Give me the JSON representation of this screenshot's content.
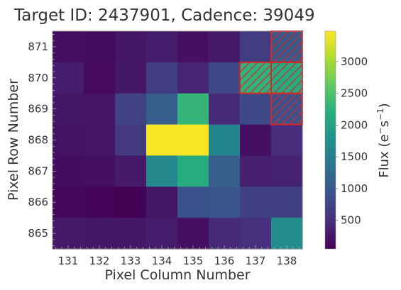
{
  "chart_data": {
    "type": "heatmap",
    "title": "Target ID: 2437901, Cadence: 39049",
    "xlabel": "Pixel Column Number",
    "ylabel": "Pixel Row Number",
    "x_ticks": [
      "131",
      "132",
      "133",
      "134",
      "135",
      "136",
      "137",
      "138"
    ],
    "y_ticks": [
      "865",
      "866",
      "867",
      "868",
      "869",
      "870",
      "871"
    ],
    "colorbar": {
      "label_main": "Flux (e",
      "label_sup_minus": "−",
      "label_mid": "s",
      "label_sup_exp": "−1",
      "label_end": ")",
      "ticks": [
        "500",
        "1000",
        "1500",
        "2000",
        "2500",
        "3000"
      ],
      "range": [
        50,
        3480
      ],
      "colormap": "viridis"
    },
    "rows": [
      871,
      870,
      869,
      868,
      867,
      866,
      865
    ],
    "columns": [
      131,
      132,
      133,
      134,
      135,
      136,
      137,
      138
    ],
    "values": [
      [
        180,
        150,
        250,
        320,
        200,
        280,
        650,
        1000
      ],
      [
        310,
        140,
        260,
        660,
        400,
        800,
        2250,
        2150
      ],
      [
        260,
        240,
        720,
        1050,
        2300,
        450,
        800,
        900
      ],
      [
        220,
        240,
        620,
        3450,
        3450,
        1600,
        200,
        480
      ],
      [
        170,
        200,
        280,
        1650,
        2150,
        1050,
        350,
        380
      ],
      [
        120,
        90,
        60,
        250,
        900,
        950,
        700,
        700
      ],
      [
        270,
        260,
        260,
        320,
        200,
        450,
        500,
        1700
      ]
    ],
    "aperture_mask": [
      {
        "row": 871,
        "col": 138
      },
      {
        "row": 870,
        "col": 137
      },
      {
        "row": 870,
        "col": 138
      },
      {
        "row": 869,
        "col": 138
      }
    ],
    "aperture_color": "#d62728"
  }
}
